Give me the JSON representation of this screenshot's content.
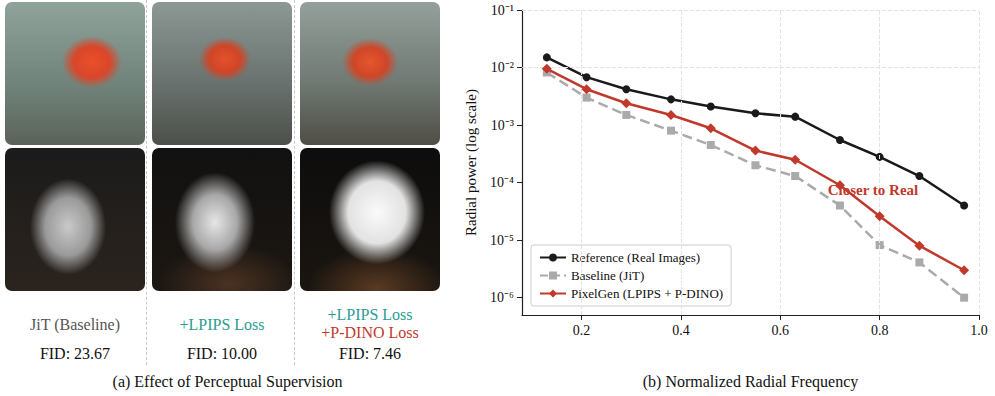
{
  "panel_a": {
    "caption": "(a) Effect of Perceptual Supervision",
    "columns": [
      {
        "label": [
          "JiT (Baseline)"
        ],
        "fid": "FID: 23.67"
      },
      {
        "label": [
          "+LPIPS Loss"
        ],
        "fid": "FID: 10.00"
      },
      {
        "label": [
          "+LPIPS Loss",
          "+P-DINO Loss"
        ],
        "fid": "FID: 7.46"
      }
    ]
  },
  "chart_data": {
    "type": "line",
    "xlabel": "(b) Normalized Radial Frequency",
    "ylabel": "Radial power (log scale)",
    "annotation": "Closer to Real",
    "x": [
      0.13,
      0.21,
      0.29,
      0.38,
      0.46,
      0.55,
      0.63,
      0.72,
      0.8,
      0.88,
      0.97
    ],
    "xlim": [
      0.08,
      1.0
    ],
    "xticks": [
      0.2,
      0.4,
      0.6,
      0.8,
      {
        "value": 1.0,
        "label": "1.0"
      }
    ],
    "ylim": [
      5e-07,
      0.1
    ],
    "yticks": [
      {
        "value": 1e-06,
        "label": "10⁻⁶"
      },
      {
        "value": 1e-05,
        "label": "10⁻⁵"
      },
      {
        "value": 0.0001,
        "label": "10⁻⁴"
      },
      {
        "value": 0.001,
        "label": "10⁻³"
      },
      {
        "value": 0.01,
        "label": "10⁻²"
      },
      {
        "value": 0.1,
        "label": "10⁻¹"
      }
    ],
    "log": "y",
    "grid": true,
    "legend": "lower left",
    "series": [
      {
        "name": "Reference (Real Images)",
        "color": "#1a1a1a",
        "marker": "circle",
        "line_style": "solid",
        "values": [
          0.015,
          0.0068,
          0.0042,
          0.0028,
          0.0021,
          0.0016,
          0.0014,
          0.00055,
          0.00028,
          0.00013,
          4e-05
        ]
      },
      {
        "name": "Baseline (JiT)",
        "color": "#aaaaaa",
        "marker": "square",
        "line_style": "dashed",
        "values": [
          0.0082,
          0.003,
          0.0015,
          0.0008,
          0.00045,
          0.0002,
          0.00013,
          4e-05,
          8.2e-06,
          4.1e-06,
          1e-06
        ]
      },
      {
        "name": "PixelGen (LPIPS + P-DINO)",
        "color": "#c0392b",
        "marker": "diamond",
        "line_style": "solid",
        "values": [
          0.0095,
          0.0042,
          0.0024,
          0.0015,
          0.00088,
          0.00036,
          0.00025,
          9e-05,
          2.6e-05,
          8e-06,
          3e-06
        ]
      }
    ]
  }
}
